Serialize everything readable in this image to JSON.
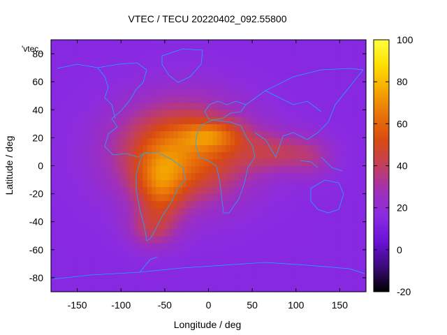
{
  "chart_data": {
    "type": "heatmap",
    "title": "VTEC / TECU 20220402_092.55800",
    "xlabel": "Longitude / deg",
    "ylabel": "Latitude / deg",
    "series_label": "'vtec_",
    "xlim": [
      -180,
      180
    ],
    "ylim": [
      -90,
      90
    ],
    "x_ticks": [
      -150,
      -100,
      -50,
      0,
      50,
      100,
      150
    ],
    "y_ticks": [
      -80,
      -60,
      -40,
      -20,
      0,
      20,
      40,
      60,
      80
    ],
    "colorbar": {
      "min": -20,
      "max": 100,
      "ticks": [
        -20,
        0,
        20,
        40,
        60,
        80,
        100
      ],
      "colors": [
        "#000000",
        "#3d0a7a",
        "#6a12d8",
        "#8a2be2",
        "#a030b8",
        "#c23e5e",
        "#d84a10",
        "#e8720a",
        "#f5a800",
        "#ffe000",
        "#ffff40"
      ]
    },
    "background_value": 15,
    "anomalies": [
      {
        "lon": -30,
        "lat": 10,
        "sx": 75,
        "sy": 35,
        "amp": 48
      },
      {
        "lon": -55,
        "lat": -15,
        "sx": 28,
        "sy": 25,
        "amp": 28
      },
      {
        "lon": 5,
        "lat": 22,
        "sx": 35,
        "sy": 10,
        "amp": 22
      },
      {
        "lon": -65,
        "lat": -45,
        "sx": 28,
        "sy": 14,
        "amp": 18
      },
      {
        "lon": 80,
        "lat": 10,
        "sx": 45,
        "sy": 14,
        "amp": 20
      },
      {
        "lon": 120,
        "lat": 5,
        "sx": 25,
        "sy": 15,
        "amp": 10
      }
    ]
  }
}
